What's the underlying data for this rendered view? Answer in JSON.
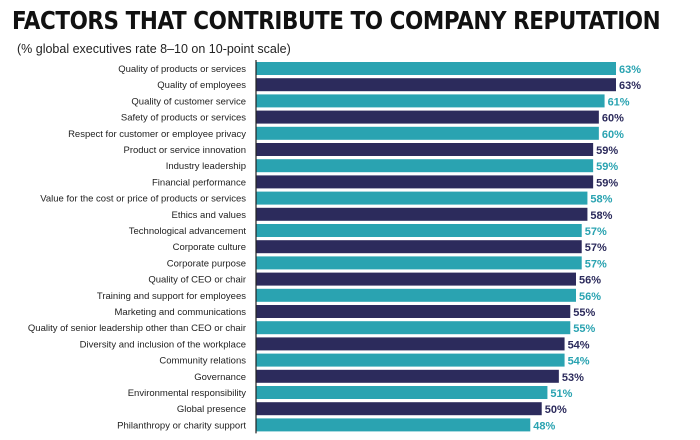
{
  "title": "FACTORS THAT CONTRIBUTE TO COMPANY REPUTATION",
  "subtitle": "(% global executives rate 8–10 on 10-point scale)",
  "colors": {
    "teal": "#2aa3b1",
    "navy": "#2c2b5c"
  },
  "chart_data": {
    "type": "bar",
    "orientation": "horizontal",
    "title": "FACTORS THAT CONTRIBUTE TO COMPANY REPUTATION",
    "subtitle": "(% global executives rate 8–10 on 10-point scale)",
    "categories": [
      "Quality of products or services",
      "Quality of employees",
      "Quality of customer service",
      "Safety of products or services",
      "Respect for customer or employee privacy",
      "Product or service innovation",
      "Industry leadership",
      "Financial performance",
      "Value for the cost or price of products or services",
      "Ethics and values",
      "Technological advancement",
      "Corporate culture",
      "Corporate purpose",
      "Quality of CEO or chair",
      "Training and support for employees",
      "Marketing and communications",
      "Quality of senior leadership other than CEO or chair",
      "Diversity and inclusion of the workplace",
      "Community relations",
      "Governance",
      "Environmental responsibility",
      "Global presence",
      "Philanthropy or charity support"
    ],
    "values": [
      63,
      63,
      61,
      60,
      60,
      59,
      59,
      59,
      58,
      58,
      57,
      57,
      57,
      56,
      56,
      55,
      55,
      54,
      54,
      53,
      51,
      50,
      48
    ],
    "value_labels": [
      "63%",
      "63%",
      "61%",
      "60%",
      "60%",
      "59%",
      "59%",
      "59%",
      "58%",
      "58%",
      "57%",
      "57%",
      "57%",
      "56%",
      "56%",
      "55%",
      "55%",
      "54%",
      "54%",
      "53%",
      "51%",
      "50%",
      "48%"
    ],
    "bar_colors": [
      "teal",
      "navy",
      "teal",
      "navy",
      "teal",
      "navy",
      "teal",
      "navy",
      "teal",
      "navy",
      "teal",
      "navy",
      "teal",
      "navy",
      "teal",
      "navy",
      "teal",
      "navy",
      "teal",
      "navy",
      "teal",
      "navy",
      "teal"
    ],
    "xlim": [
      0,
      63
    ],
    "grid": false,
    "legend": "none"
  }
}
